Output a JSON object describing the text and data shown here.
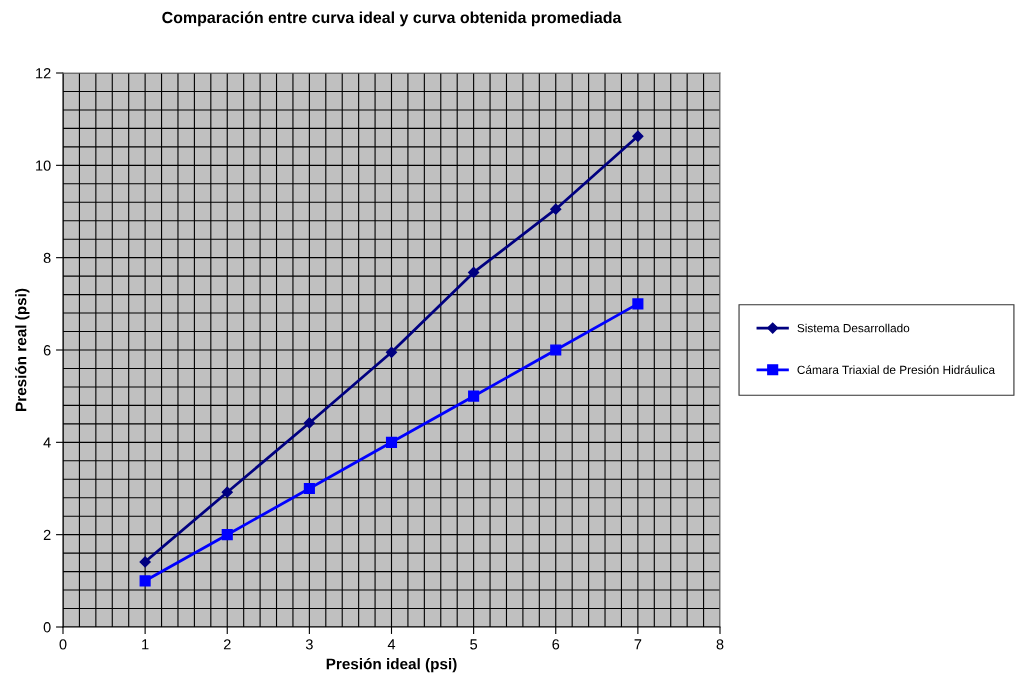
{
  "chart_data": {
    "type": "line",
    "title": "Comparación entre curva ideal y curva obtenida promediada",
    "xlabel": "Presión ideal (psi)",
    "ylabel": "Presión real (psi)",
    "x": [
      1,
      2,
      3,
      4,
      5,
      6,
      7
    ],
    "series": [
      {
        "name": "Sistema Desarrollado",
        "color": "#000080",
        "marker": "diamond",
        "values": [
          1.41,
          2.92,
          4.42,
          5.95,
          7.68,
          9.05,
          10.63
        ]
      },
      {
        "name": "Cámara Triaxial de Presión Hidráulica",
        "color": "#0000ff",
        "marker": "square",
        "values": [
          1,
          2,
          3,
          4,
          5,
          6,
          7
        ]
      }
    ],
    "xlim": [
      0,
      8
    ],
    "ylim": [
      0,
      12
    ],
    "xticks": [
      0,
      {
        "value": 0.2,
        "label": null
      },
      {
        "value": 0.4,
        "label": null
      },
      {
        "value": 0.6,
        "label": null
      },
      {
        "value": 0.8,
        "label": null
      },
      1,
      {
        "value": 1.2,
        "label": null
      },
      {
        "value": 1.4,
        "label": null
      },
      {
        "value": 1.6,
        "label": null
      },
      {
        "value": 1.8,
        "label": null
      },
      2,
      {
        "value": 2.2,
        "label": null
      },
      {
        "value": 2.4,
        "label": null
      },
      {
        "value": 2.6,
        "label": null
      },
      {
        "value": 2.8,
        "label": null
      },
      3,
      {
        "value": 3.2,
        "label": null
      },
      {
        "value": 3.4,
        "label": null
      },
      {
        "value": 3.6,
        "label": null
      },
      {
        "value": 3.8,
        "label": null
      },
      4,
      {
        "value": 4.2,
        "label": null
      },
      {
        "value": 4.4,
        "label": null
      },
      {
        "value": 4.6,
        "label": null
      },
      {
        "value": 4.8,
        "label": null
      },
      5,
      {
        "value": 5.2,
        "label": null
      },
      {
        "value": 5.4,
        "label": null
      },
      {
        "value": 5.6,
        "label": null
      },
      {
        "value": 5.8,
        "label": null
      },
      6,
      {
        "value": 6.2,
        "label": null
      },
      {
        "value": 6.4,
        "label": null
      },
      {
        "value": 6.6,
        "label": null
      },
      {
        "value": 6.8,
        "label": null
      },
      7,
      {
        "value": 7.2,
        "label": null
      },
      {
        "value": 7.4,
        "label": null
      },
      {
        "value": 7.6,
        "label": null
      },
      {
        "value": 7.8,
        "label": null
      },
      8
    ],
    "yticks": [
      0,
      {
        "value": 0.4,
        "label": null
      },
      {
        "value": 0.8,
        "label": null
      },
      {
        "value": 1.2,
        "label": null
      },
      {
        "value": 1.6,
        "label": null
      },
      2,
      {
        "value": 2.4,
        "label": null
      },
      {
        "value": 2.8,
        "label": null
      },
      {
        "value": 3.2,
        "label": null
      },
      {
        "value": 3.6,
        "label": null
      },
      4,
      {
        "value": 4.4,
        "label": null
      },
      {
        "value": 4.8,
        "label": null
      },
      {
        "value": 5.2,
        "label": null
      },
      {
        "value": 5.6,
        "label": null
      },
      6,
      {
        "value": 6.4,
        "label": null
      },
      {
        "value": 6.8,
        "label": null
      },
      {
        "value": 7.2,
        "label": null
      },
      {
        "value": 7.6,
        "label": null
      },
      8,
      {
        "value": 8.4,
        "label": null
      },
      {
        "value": 8.8,
        "label": null
      },
      {
        "value": 9.2,
        "label": null
      },
      {
        "value": 9.6,
        "label": null
      },
      10,
      {
        "value": 10.4,
        "label": null
      },
      {
        "value": 10.8,
        "label": null
      },
      {
        "value": 11.2,
        "label": null
      },
      {
        "value": 11.6,
        "label": null
      },
      12
    ],
    "grid": true,
    "legend": "right",
    "line_style": "solid"
  }
}
